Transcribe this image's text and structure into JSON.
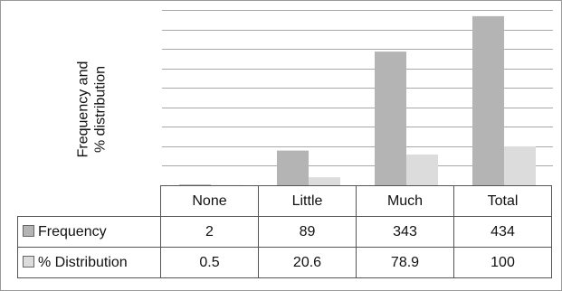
{
  "chart_data": {
    "type": "bar",
    "categories": [
      "None",
      "Little",
      "Much",
      "Total"
    ],
    "series": [
      {
        "name": "Frequency",
        "values": [
          2,
          89,
          343,
          434
        ],
        "labels": [
          "2",
          "89",
          "343",
          "434"
        ],
        "color": "#b4b4b4"
      },
      {
        "name": "% Distribution",
        "values": [
          0.5,
          20.6,
          78.9,
          100
        ],
        "labels": [
          "0.5",
          "20.6",
          "78.9",
          "100"
        ],
        "color": "#dcdcdc"
      }
    ],
    "ylabel_lines": [
      "Frequency and",
      "% distribution"
    ],
    "ylim": [
      0,
      450
    ],
    "grid": true,
    "legend": "data-table"
  }
}
